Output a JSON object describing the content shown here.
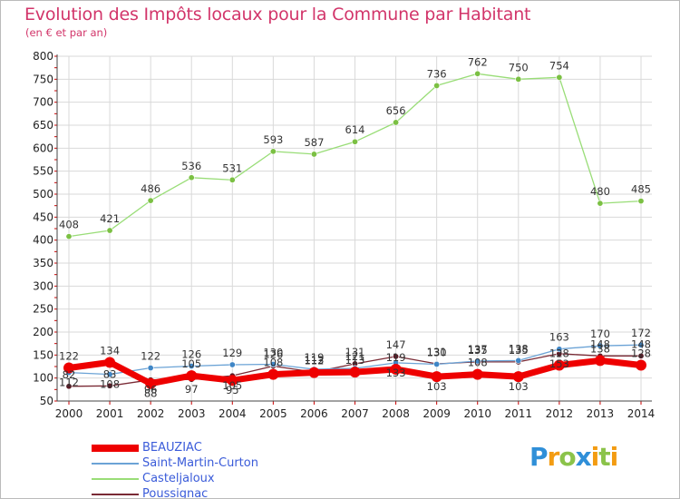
{
  "header": {
    "title": "Evolution des Impôts locaux pour la Commune par Habitant",
    "subtitle": "(en € et par an)"
  },
  "colors": {
    "title": "#d2356a",
    "grid": "#d9d9d9",
    "axis_tick": "#cc0000",
    "legend_text": "#3a5bd9"
  },
  "logo": {
    "letters": [
      "P",
      "r",
      "o",
      "x",
      "i",
      "t",
      "i"
    ],
    "colors": [
      "#2f8fd8",
      "#f39c12",
      "#8bc34a",
      "#2f8fd8",
      "#f39c12",
      "#8bc34a",
      "#f39c12"
    ]
  },
  "chart_data": {
    "type": "line",
    "title": "Evolution des Impôts locaux pour la Commune par Habitant",
    "subtitle": "(en € et par an)",
    "xlabel": "",
    "ylabel": "",
    "x": [
      2000,
      2001,
      2002,
      2003,
      2004,
      2005,
      2006,
      2007,
      2008,
      2009,
      2010,
      2011,
      2012,
      2013,
      2014
    ],
    "ylim": [
      50,
      800
    ],
    "yticks": [
      50,
      100,
      150,
      200,
      250,
      300,
      350,
      400,
      450,
      500,
      550,
      600,
      650,
      700,
      750,
      800
    ],
    "grid": true,
    "legend_position": "bottom-left",
    "series": [
      {
        "name": "BEAUZIAC",
        "color": "#ee0000",
        "marker": "#ee0000",
        "width": 7,
        "values": [
          122,
          134,
          88,
          105,
          95,
          108,
          112,
          113,
          119,
          103,
          108,
          103,
          128,
          138,
          128
        ],
        "labels": [
          "122",
          "134",
          "88",
          "105",
          "95",
          "108",
          "112",
          "113",
          "119",
          "103",
          "108",
          "103",
          "128",
          "138",
          "128"
        ],
        "label_pos": [
          "above",
          "above",
          "below",
          "above",
          "below",
          "above",
          "above",
          "above",
          "above",
          "below",
          "above",
          "below",
          "above",
          "above",
          "above"
        ]
      },
      {
        "name": "Saint-Martin-Curton",
        "color": "#6ba3d6",
        "marker": "#3f86c6",
        "width": 1.3,
        "values": [
          112,
          108,
          122,
          126,
          129,
          130,
          119,
          121,
          133,
          130,
          137,
          138,
          163,
          170,
          172
        ],
        "labels": [
          "112",
          "108",
          "122",
          "126",
          "129",
          "130",
          "119",
          "121",
          "133",
          "130",
          "137",
          "138",
          "163",
          "170",
          "172"
        ],
        "label_pos": [
          "below",
          "below",
          "above",
          "above",
          "above",
          "above",
          "above",
          "above",
          "below",
          "above",
          "above",
          "above",
          "above",
          "above",
          "above"
        ]
      },
      {
        "name": "Casteljaloux",
        "color": "#99dd77",
        "marker": "#7bc043",
        "width": 1.3,
        "values": [
          408,
          421,
          486,
          536,
          531,
          593,
          587,
          614,
          656,
          736,
          762,
          750,
          754,
          480,
          485
        ],
        "labels": [
          "408",
          "421",
          "486",
          "536",
          "531",
          "593",
          "587",
          "614",
          "656",
          "736",
          "762",
          "750",
          "754",
          "480",
          "485"
        ],
        "label_pos": [
          "above",
          "above",
          "above",
          "above",
          "above",
          "above",
          "above",
          "above",
          "above",
          "above",
          "above",
          "above",
          "above",
          "above",
          "above"
        ]
      },
      {
        "name": "Poussignac",
        "color": "#7a2a35",
        "marker": "#5a1a25",
        "width": 1.3,
        "values": [
          82,
          83,
          96,
          97,
          105,
          126,
          113,
          131,
          147,
          131,
          135,
          135,
          153,
          148,
          148
        ],
        "labels": [
          "82",
          "83",
          "96",
          "97",
          "105",
          "126",
          "113",
          "131",
          "147",
          "131",
          "135",
          "135",
          "153",
          "148",
          "148"
        ],
        "label_pos": [
          "above",
          "above",
          "below",
          "below",
          "below",
          "above",
          "above",
          "above",
          "above",
          "above",
          "above",
          "above",
          "below",
          "above",
          "above"
        ]
      }
    ]
  }
}
